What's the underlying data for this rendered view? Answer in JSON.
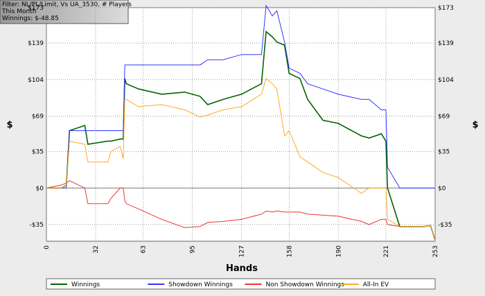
{
  "chart_data": {
    "type": "line",
    "filter_text": [
      "Filter: NL/PL/Limit, Vs UA_3530, # Players",
      "This Month",
      "Winnings: $-48.85"
    ],
    "x_label": "Hands",
    "y_label": "$",
    "x": [
      0,
      10,
      13,
      15,
      25,
      27,
      40,
      42,
      48,
      50,
      51,
      52,
      60,
      75,
      90,
      100,
      105,
      115,
      127,
      140,
      143,
      147,
      150,
      155,
      158,
      165,
      170,
      180,
      190,
      205,
      210,
      218,
      221,
      222,
      230,
      245,
      250,
      253
    ],
    "series": [
      {
        "name": "Winnings",
        "color": "#006400",
        "values": [
          0,
          0,
          3,
          55,
          60,
          42,
          45,
          45,
          47,
          47,
          105,
          100,
          95,
          90,
          92,
          88,
          80,
          85,
          90,
          100,
          150,
          145,
          140,
          137,
          110,
          105,
          85,
          65,
          62,
          50,
          48,
          52,
          45,
          0,
          -37,
          -37,
          -36,
          -50
        ]
      },
      {
        "name": "Showdown Winnings",
        "color": "#3333ff",
        "values": [
          0,
          0,
          0,
          55,
          55,
          55,
          55,
          55,
          55,
          55,
          118,
          118,
          118,
          118,
          118,
          118,
          123,
          123,
          128,
          128,
          175,
          165,
          170,
          140,
          115,
          110,
          100,
          95,
          90,
          85,
          85,
          75,
          75,
          20,
          0,
          0,
          0,
          0
        ]
      },
      {
        "name": "Non Showdown Winnings",
        "color": "#ee3333",
        "values": [
          0,
          3,
          5,
          7,
          0,
          -15,
          -15,
          -10,
          0,
          0,
          -12,
          -15,
          -20,
          -30,
          -38,
          -37,
          -33,
          -32,
          -30,
          -25,
          -22,
          -23,
          -22,
          -23,
          -23,
          -23,
          -25,
          -26,
          -27,
          -32,
          -35,
          -30,
          -30,
          -35,
          -37,
          -37,
          -36,
          -50
        ]
      },
      {
        "name": "All-In EV",
        "color": "#ffaa22",
        "values": [
          0,
          0,
          3,
          45,
          42,
          25,
          25,
          35,
          40,
          28,
          85,
          85,
          78,
          80,
          75,
          68,
          70,
          75,
          78,
          90,
          105,
          100,
          95,
          50,
          55,
          30,
          25,
          15,
          10,
          -5,
          0,
          0,
          0,
          -30,
          -37,
          -37,
          -36,
          -50
        ]
      }
    ],
    "xlim": [
      0,
      253
    ],
    "xticks": [
      0,
      32,
      63,
      95,
      127,
      158,
      190,
      221,
      253
    ],
    "ylim": [
      -51,
      173
    ],
    "yticks": [
      {
        "value": -35,
        "label": "-$35"
      },
      {
        "value": 0,
        "label": "$0"
      },
      {
        "value": 35,
        "label": "$35"
      },
      {
        "value": 69,
        "label": "$69"
      },
      {
        "value": 104,
        "label": "$104"
      },
      {
        "value": 139,
        "label": "$139"
      },
      {
        "value": 173,
        "label": "$173"
      }
    ],
    "grid": true
  }
}
